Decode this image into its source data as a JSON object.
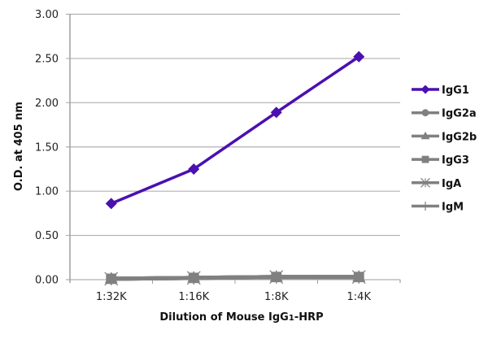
{
  "chart_data": {
    "type": "line",
    "title": "",
    "xlabel": "Dilution of Mouse IgG1-HRP",
    "xlabel_parts": {
      "before": "Dilution of Mouse IgG",
      "sub": "1",
      "after": "-HRP"
    },
    "ylabel": "O.D. at 405 nm",
    "categories": [
      "1:32K",
      "1:16K",
      "1:8K",
      "1:4K"
    ],
    "ylim": [
      0,
      3.0
    ],
    "yticks": [
      "0.00",
      "0.50",
      "1.00",
      "1.50",
      "2.00",
      "2.50",
      "3.00"
    ],
    "grid": {
      "horizontal": true,
      "vertical": false
    },
    "legend_position": "right",
    "series": [
      {
        "name": "IgG1",
        "marker": "diamond",
        "color": "#4a10b0",
        "values": [
          0.86,
          1.25,
          1.89,
          2.52
        ]
      },
      {
        "name": "IgG2a",
        "marker": "circle",
        "color": "#808080",
        "values": [
          0.01,
          0.02,
          0.03,
          0.03
        ]
      },
      {
        "name": "IgG2b",
        "marker": "triangle",
        "color": "#808080",
        "values": [
          0.01,
          0.02,
          0.03,
          0.03
        ]
      },
      {
        "name": "IgG3",
        "marker": "square",
        "color": "#808080",
        "values": [
          0.01,
          0.02,
          0.03,
          0.03
        ]
      },
      {
        "name": "IgA",
        "marker": "asterisk",
        "color": "#808080",
        "values": [
          0.01,
          0.02,
          0.03,
          0.03
        ]
      },
      {
        "name": "IgM",
        "marker": "plus",
        "color": "#808080",
        "values": [
          0.01,
          0.02,
          0.03,
          0.03
        ]
      }
    ]
  },
  "colors": {
    "gridline": "#b0b0b0",
    "axis": "#a0a0a0"
  }
}
